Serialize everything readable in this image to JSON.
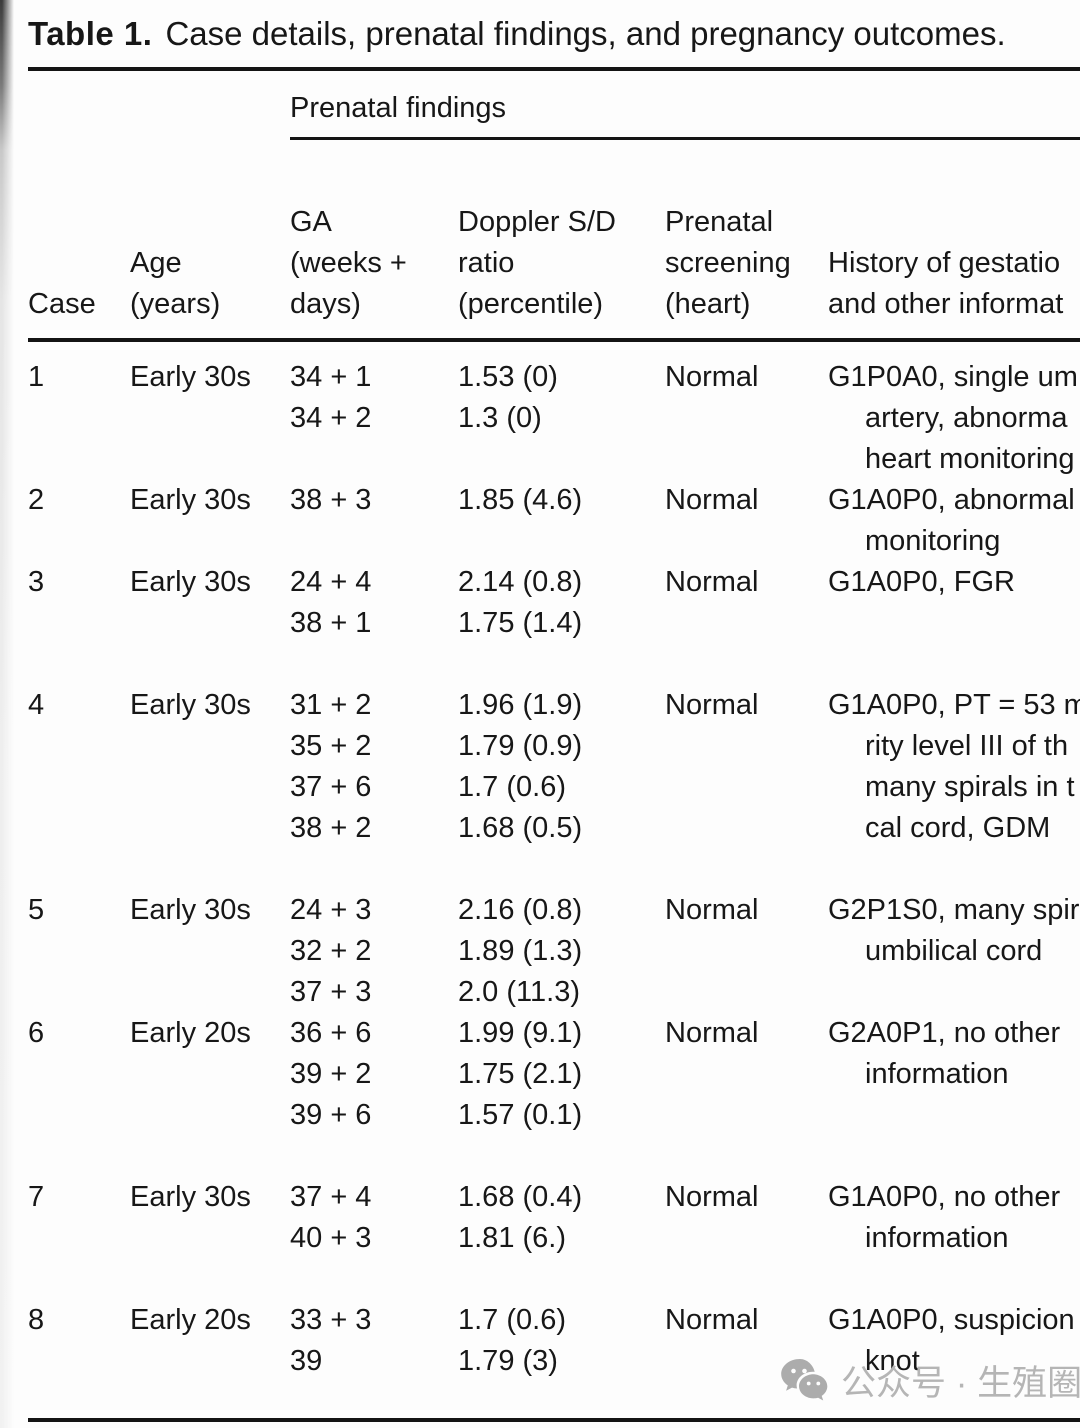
{
  "title": {
    "label": "Table 1.",
    "text": "Case details, prenatal findings, and pregnancy outcomes."
  },
  "table": {
    "group_header": "Prenatal findings",
    "columns": {
      "case": [
        "Case"
      ],
      "age": [
        "Age",
        "(years)"
      ],
      "ga": [
        "GA",
        "(weeks +",
        "days)"
      ],
      "doppler": [
        "Doppler S/D",
        "ratio",
        "(percentile)"
      ],
      "screening": [
        "Prenatal",
        "screening",
        "(heart)"
      ],
      "history": [
        "History of gestatio",
        "and other informat"
      ]
    },
    "rows": [
      {
        "case": "1",
        "age": "Early 30s",
        "ga": [
          "34 + 1",
          "34 + 2"
        ],
        "doppler": [
          "1.53 (0)",
          "1.3 (0)"
        ],
        "screening": "Normal",
        "history": [
          "G1P0A0, single um",
          "artery, abnorma",
          "heart monitoring"
        ],
        "gap_after": false
      },
      {
        "case": "2",
        "age": "Early 30s",
        "ga": [
          "38 + 3"
        ],
        "doppler": [
          "1.85 (4.6)"
        ],
        "screening": "Normal",
        "history": [
          "G1A0P0, abnormal",
          "monitoring"
        ],
        "gap_after": false
      },
      {
        "case": "3",
        "age": "Early 30s",
        "ga": [
          "24 + 4",
          "38 + 1"
        ],
        "doppler": [
          "2.14 (0.8)",
          "1.75 (1.4)"
        ],
        "screening": "Normal",
        "history": [
          "G1A0P0, FGR"
        ],
        "gap_after": true
      },
      {
        "case": "4",
        "age": "Early 30s",
        "ga": [
          "31 + 2",
          "35 + 2",
          "37 + 6",
          "38 + 2"
        ],
        "doppler": [
          "1.96 (1.9)",
          "1.79 (0.9)",
          "1.7 (0.6)",
          "1.68 (0.5)"
        ],
        "screening": "Normal",
        "history": [
          "G1A0P0, PT = 53 m",
          "rity level III of th",
          "many spirals in t",
          "cal cord, GDM"
        ],
        "gap_after": true
      },
      {
        "case": "5",
        "age": "Early 30s",
        "ga": [
          "24 + 3",
          "32 + 2",
          "37 + 3"
        ],
        "doppler": [
          "2.16 (0.8)",
          "1.89 (1.3)",
          "2.0 (11.3)"
        ],
        "screening": "Normal",
        "history": [
          "G2P1S0, many spir",
          "umbilical cord"
        ],
        "gap_after": false
      },
      {
        "case": "6",
        "age": "Early 20s",
        "ga": [
          "36 + 6",
          "39 + 2",
          "39 + 6"
        ],
        "doppler": [
          "1.99 (9.1)",
          "1.75 (2.1)",
          "1.57 (0.1)"
        ],
        "screening": "Normal",
        "history": [
          "G2A0P1, no other",
          "information"
        ],
        "gap_after": true
      },
      {
        "case": "7",
        "age": "Early 30s",
        "ga": [
          "37 + 4",
          "40 + 3"
        ],
        "doppler": [
          "1.68 (0.4)",
          "1.81 (6.)"
        ],
        "screening": "Normal",
        "history": [
          "G1A0P0, no other",
          "information"
        ],
        "gap_after": true
      },
      {
        "case": "8",
        "age": "Early 20s",
        "ga": [
          "33 + 3",
          "39"
        ],
        "doppler": [
          "1.7 (0.6)",
          "1.79 (3)"
        ],
        "screening": "Normal",
        "history": [
          "G1A0P0, suspicion",
          "knot"
        ],
        "gap_after": false
      }
    ]
  },
  "watermark": {
    "icon": "wechat-icon",
    "text": "公众号 · 生殖圈"
  },
  "colors": {
    "text": "#171717",
    "rule": "#141414",
    "watermark": "#b5b5b5",
    "page_bg": "#fdfdfd"
  }
}
